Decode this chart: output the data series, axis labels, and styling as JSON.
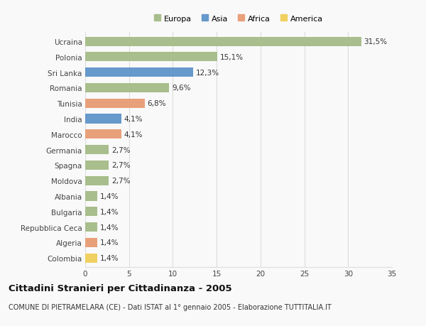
{
  "categories": [
    "Ucraina",
    "Polonia",
    "Sri Lanka",
    "Romania",
    "Tunisia",
    "India",
    "Marocco",
    "Germania",
    "Spagna",
    "Moldova",
    "Albania",
    "Bulgaria",
    "Repubblica Ceca",
    "Algeria",
    "Colombia"
  ],
  "values": [
    31.5,
    15.1,
    12.3,
    9.6,
    6.8,
    4.1,
    4.1,
    2.7,
    2.7,
    2.7,
    1.4,
    1.4,
    1.4,
    1.4,
    1.4
  ],
  "labels": [
    "31,5%",
    "15,1%",
    "12,3%",
    "9,6%",
    "6,8%",
    "4,1%",
    "4,1%",
    "2,7%",
    "2,7%",
    "2,7%",
    "1,4%",
    "1,4%",
    "1,4%",
    "1,4%",
    "1,4%"
  ],
  "continents": [
    "Europa",
    "Europa",
    "Asia",
    "Europa",
    "Africa",
    "Asia",
    "Africa",
    "Europa",
    "Europa",
    "Europa",
    "Europa",
    "Europa",
    "Europa",
    "Africa",
    "America"
  ],
  "continent_colors": {
    "Europa": "#a8be8c",
    "Asia": "#6699cc",
    "Africa": "#e8a07a",
    "America": "#f0d060"
  },
  "legend_labels": [
    "Europa",
    "Asia",
    "Africa",
    "America"
  ],
  "legend_colors": [
    "#a8be8c",
    "#6699cc",
    "#e8a07a",
    "#f0d060"
  ],
  "title": "Cittadini Stranieri per Cittadinanza - 2005",
  "subtitle": "COMUNE DI PIETRAMELARA (CE) - Dati ISTAT al 1° gennaio 2005 - Elaborazione TUTTITALIA.IT",
  "xlim": [
    0,
    35
  ],
  "xticks": [
    0,
    5,
    10,
    15,
    20,
    25,
    30,
    35
  ],
  "background_color": "#f9f9f9",
  "grid_color": "#dddddd",
  "bar_height": 0.6,
  "label_fontsize": 7.5,
  "tick_fontsize": 7.5,
  "title_fontsize": 9.5,
  "subtitle_fontsize": 7.0
}
